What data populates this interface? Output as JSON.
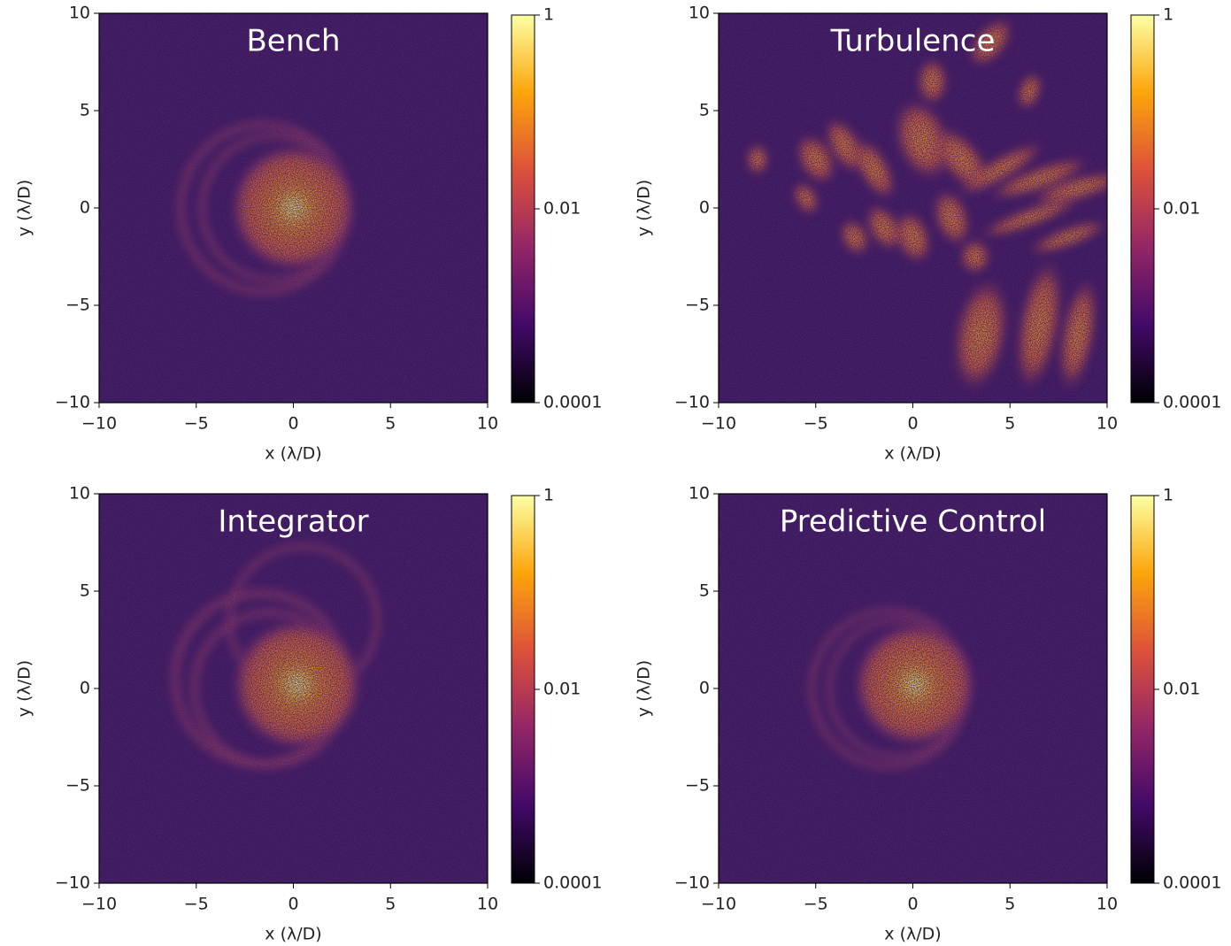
{
  "chart_data": [
    {
      "type": "heatmap",
      "title": "Bench",
      "xlabel": "x (λ/D)",
      "ylabel": "y (λ/D)",
      "xlim": [
        -10,
        10
      ],
      "ylim": [
        -10,
        10
      ],
      "xticks": [
        {
          "value": -10,
          "label": "−10"
        },
        {
          "value": -5,
          "label": "−5"
        },
        0,
        5,
        10
      ],
      "yticks": [
        {
          "value": -10,
          "label": "−10"
        },
        {
          "value": -5,
          "label": "−5"
        },
        0,
        5,
        10
      ],
      "colorbar": {
        "scale": "log",
        "lim": [
          0.0001,
          1
        ],
        "ticks": [
          0.0001,
          0.01,
          1
        ],
        "colors": [
          "#000004",
          "#420a68",
          "#932667",
          "#dd513a",
          "#fca50a",
          "#fcffa4"
        ]
      }
    },
    {
      "type": "heatmap",
      "title": "Turbulence",
      "xlabel": "x (λ/D)",
      "ylabel": "y (λ/D)",
      "xlim": [
        -10,
        10
      ],
      "ylim": [
        -10,
        10
      ],
      "xticks": [
        {
          "value": -10,
          "label": "−10"
        },
        {
          "value": -5,
          "label": "−5"
        },
        0,
        5,
        10
      ],
      "yticks": [
        {
          "value": -10,
          "label": "−10"
        },
        {
          "value": -5,
          "label": "−5"
        },
        0,
        5,
        10
      ],
      "colorbar": {
        "scale": "log",
        "lim": [
          0.0001,
          1
        ],
        "ticks": [
          0.0001,
          0.01,
          1
        ],
        "colors": [
          "#000004",
          "#420a68",
          "#932667",
          "#dd513a",
          "#fca50a",
          "#fcffa4"
        ]
      }
    },
    {
      "type": "heatmap",
      "title": "Integrator",
      "xlabel": "x (λ/D)",
      "ylabel": "y (λ/D)",
      "xlim": [
        -10,
        10
      ],
      "ylim": [
        -10,
        10
      ],
      "xticks": [
        {
          "value": -10,
          "label": "−10"
        },
        {
          "value": -5,
          "label": "−5"
        },
        0,
        5,
        10
      ],
      "yticks": [
        {
          "value": -10,
          "label": "−10"
        },
        {
          "value": -5,
          "label": "−5"
        },
        0,
        5,
        10
      ],
      "colorbar": {
        "scale": "log",
        "lim": [
          0.0001,
          1
        ],
        "ticks": [
          0.0001,
          0.01,
          1
        ],
        "colors": [
          "#000004",
          "#420a68",
          "#932667",
          "#dd513a",
          "#fca50a",
          "#fcffa4"
        ]
      }
    },
    {
      "type": "heatmap",
      "title": "Predictive Control",
      "xlabel": "x (λ/D)",
      "ylabel": "y (λ/D)",
      "xlim": [
        -10,
        10
      ],
      "ylim": [
        -10,
        10
      ],
      "xticks": [
        {
          "value": -10,
          "label": "−10"
        },
        {
          "value": -5,
          "label": "−5"
        },
        0,
        5,
        10
      ],
      "yticks": [
        {
          "value": -10,
          "label": "−10"
        },
        {
          "value": -5,
          "label": "−5"
        },
        0,
        5,
        10
      ],
      "colorbar": {
        "scale": "log",
        "lim": [
          0.0001,
          1
        ],
        "ticks": [
          0.0001,
          0.01,
          1
        ],
        "colors": [
          "#000004",
          "#420a68",
          "#932667",
          "#dd513a",
          "#fca50a",
          "#fcffa4"
        ]
      }
    }
  ]
}
